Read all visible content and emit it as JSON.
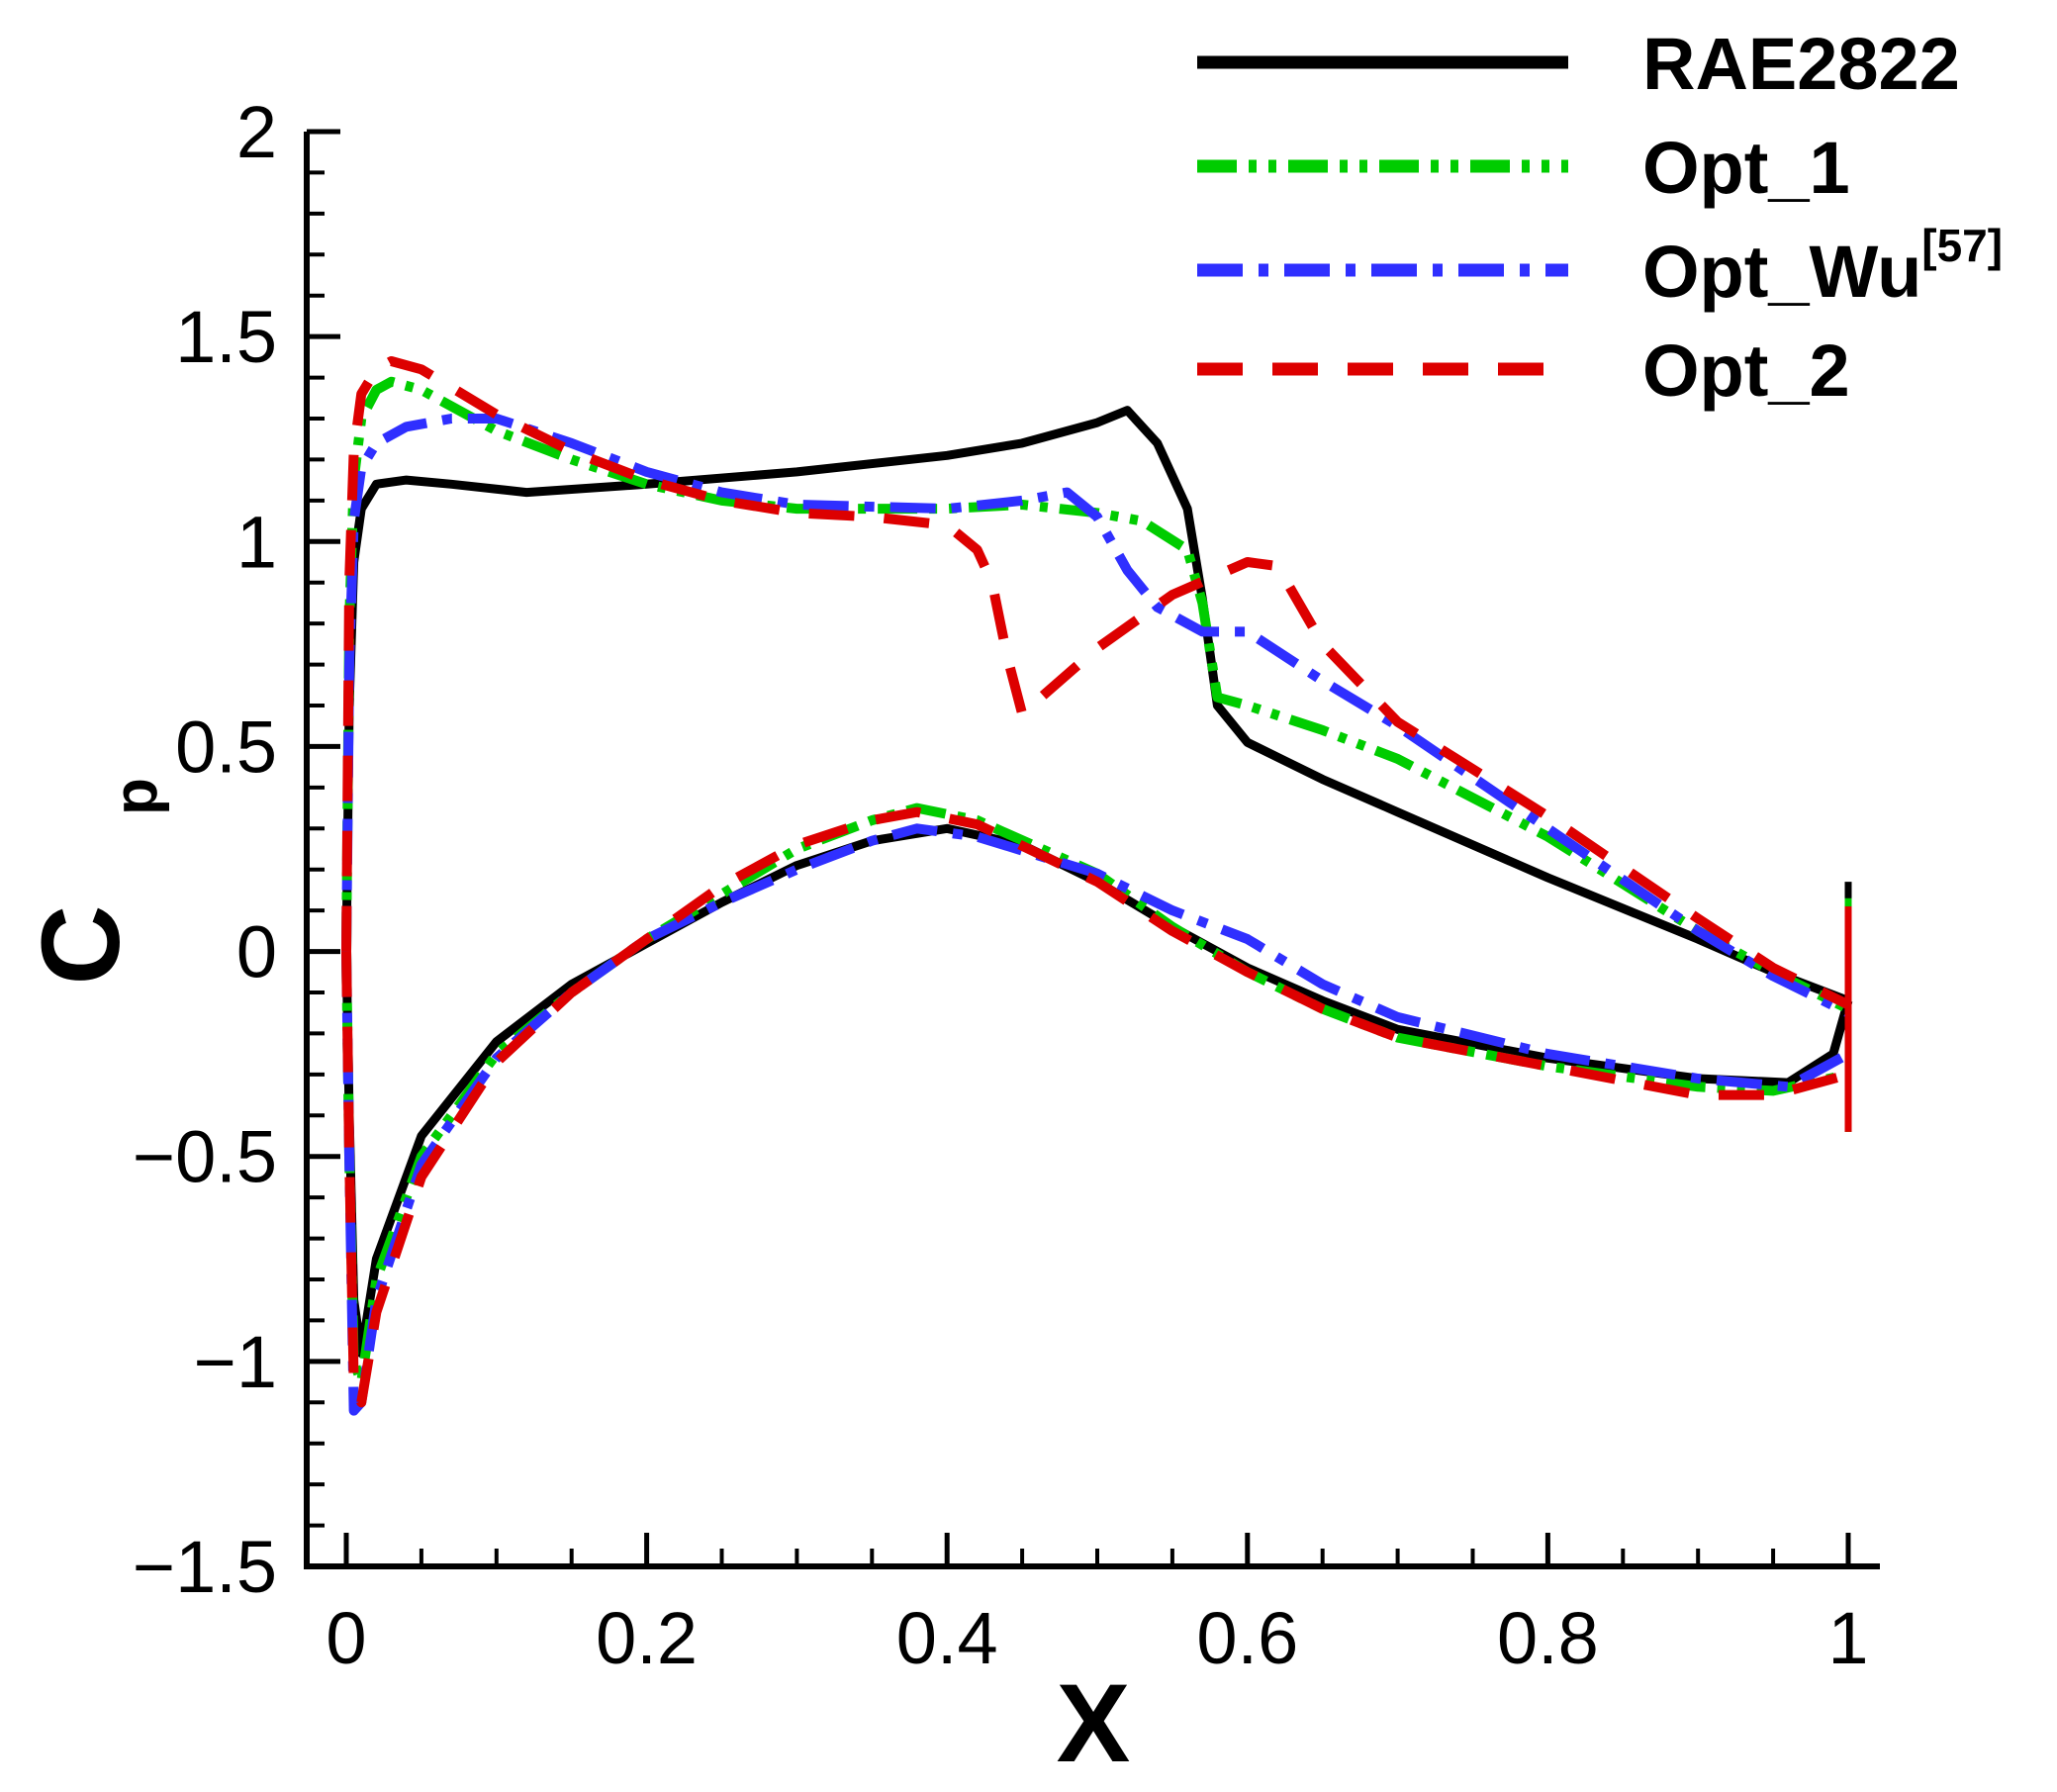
{
  "chart_data": {
    "type": "line",
    "title": "",
    "xlabel": "X",
    "ylabel": "C",
    "ylabel_subscript": "p",
    "xlim": [
      0,
      1
    ],
    "ylim": [
      -1.5,
      2
    ],
    "x_ticks": [
      0,
      0.2,
      0.4,
      0.6,
      0.8,
      1
    ],
    "x_tick_labels": [
      "0",
      "0.2",
      "0.4",
      "0.6",
      "0.8",
      "1"
    ],
    "y_ticks": [
      -1.5,
      -1,
      -0.5,
      0,
      0.5,
      1,
      1.5,
      2
    ],
    "y_tick_labels": [
      "−1.5",
      "−1",
      "−0.5",
      "0",
      "0.5",
      "1",
      "1.5",
      "2"
    ],
    "grid": false,
    "legend_position": "top-right",
    "series": [
      {
        "name": "RAE2822",
        "name_superscript": "",
        "color": "#000000",
        "dash": "solid",
        "upper": [
          [
            0,
            0
          ],
          [
            0.002,
            0.6
          ],
          [
            0.005,
            0.95
          ],
          [
            0.01,
            1.08
          ],
          [
            0.02,
            1.14
          ],
          [
            0.04,
            1.15
          ],
          [
            0.07,
            1.14
          ],
          [
            0.12,
            1.12
          ],
          [
            0.2,
            1.14
          ],
          [
            0.3,
            1.17
          ],
          [
            0.4,
            1.21
          ],
          [
            0.45,
            1.24
          ],
          [
            0.5,
            1.29
          ],
          [
            0.52,
            1.32
          ],
          [
            0.54,
            1.24
          ],
          [
            0.56,
            1.08
          ],
          [
            0.57,
            0.86
          ],
          [
            0.58,
            0.6
          ],
          [
            0.6,
            0.51
          ],
          [
            0.65,
            0.42
          ],
          [
            0.7,
            0.34
          ],
          [
            0.8,
            0.18
          ],
          [
            0.9,
            0.03
          ],
          [
            0.95,
            -0.05
          ],
          [
            1.0,
            -0.12
          ]
        ],
        "lower": [
          [
            0,
            0
          ],
          [
            0.002,
            -0.4
          ],
          [
            0.005,
            -0.85
          ],
          [
            0.01,
            -0.98
          ],
          [
            0.02,
            -0.75
          ],
          [
            0.05,
            -0.45
          ],
          [
            0.1,
            -0.22
          ],
          [
            0.15,
            -0.08
          ],
          [
            0.2,
            0.02
          ],
          [
            0.25,
            0.12
          ],
          [
            0.3,
            0.21
          ],
          [
            0.35,
            0.27
          ],
          [
            0.4,
            0.3
          ],
          [
            0.45,
            0.26
          ],
          [
            0.5,
            0.17
          ],
          [
            0.55,
            0.06
          ],
          [
            0.6,
            -0.04
          ],
          [
            0.65,
            -0.12
          ],
          [
            0.7,
            -0.19
          ],
          [
            0.8,
            -0.26
          ],
          [
            0.9,
            -0.31
          ],
          [
            0.96,
            -0.32
          ],
          [
            0.99,
            -0.25
          ],
          [
            1.0,
            -0.12
          ]
        ],
        "te_spike": [
          0.17,
          -0.12
        ]
      },
      {
        "name": "Opt_1",
        "name_superscript": "",
        "color": "#00cc00",
        "dash": "dash-dot-dot",
        "upper": [
          [
            0,
            0
          ],
          [
            0.002,
            0.8
          ],
          [
            0.005,
            1.15
          ],
          [
            0.01,
            1.3
          ],
          [
            0.02,
            1.37
          ],
          [
            0.03,
            1.39
          ],
          [
            0.05,
            1.37
          ],
          [
            0.1,
            1.27
          ],
          [
            0.15,
            1.2
          ],
          [
            0.2,
            1.14
          ],
          [
            0.25,
            1.1
          ],
          [
            0.3,
            1.08
          ],
          [
            0.4,
            1.08
          ],
          [
            0.45,
            1.09
          ],
          [
            0.5,
            1.07
          ],
          [
            0.53,
            1.05
          ],
          [
            0.56,
            0.98
          ],
          [
            0.57,
            0.85
          ],
          [
            0.58,
            0.62
          ],
          [
            0.6,
            0.6
          ],
          [
            0.65,
            0.54
          ],
          [
            0.7,
            0.47
          ],
          [
            0.8,
            0.28
          ],
          [
            0.9,
            0.05
          ],
          [
            0.95,
            -0.05
          ],
          [
            1.0,
            -0.14
          ]
        ],
        "lower": [
          [
            0,
            0
          ],
          [
            0.002,
            -0.5
          ],
          [
            0.005,
            -1.0
          ],
          [
            0.01,
            -1.05
          ],
          [
            0.02,
            -0.8
          ],
          [
            0.05,
            -0.5
          ],
          [
            0.1,
            -0.25
          ],
          [
            0.15,
            -0.1
          ],
          [
            0.2,
            0.03
          ],
          [
            0.25,
            0.14
          ],
          [
            0.3,
            0.25
          ],
          [
            0.35,
            0.32
          ],
          [
            0.38,
            0.35
          ],
          [
            0.42,
            0.32
          ],
          [
            0.5,
            0.19
          ],
          [
            0.55,
            0.06
          ],
          [
            0.6,
            -0.05
          ],
          [
            0.65,
            -0.14
          ],
          [
            0.7,
            -0.21
          ],
          [
            0.8,
            -0.28
          ],
          [
            0.9,
            -0.33
          ],
          [
            0.95,
            -0.34
          ],
          [
            1.0,
            -0.3
          ]
        ],
        "te_spike": [
          0.13,
          -0.44
        ]
      },
      {
        "name": "Opt_Wu",
        "name_superscript": "[57]",
        "color": "#2f2fff",
        "dash": "dash-dot",
        "upper": [
          [
            0,
            0
          ],
          [
            0.002,
            0.7
          ],
          [
            0.005,
            1.05
          ],
          [
            0.01,
            1.18
          ],
          [
            0.02,
            1.24
          ],
          [
            0.04,
            1.28
          ],
          [
            0.07,
            1.3
          ],
          [
            0.1,
            1.3
          ],
          [
            0.15,
            1.24
          ],
          [
            0.2,
            1.17
          ],
          [
            0.25,
            1.12
          ],
          [
            0.3,
            1.09
          ],
          [
            0.4,
            1.08
          ],
          [
            0.45,
            1.1
          ],
          [
            0.48,
            1.12
          ],
          [
            0.5,
            1.06
          ],
          [
            0.52,
            0.93
          ],
          [
            0.54,
            0.84
          ],
          [
            0.57,
            0.78
          ],
          [
            0.6,
            0.78
          ],
          [
            0.65,
            0.66
          ],
          [
            0.7,
            0.55
          ],
          [
            0.8,
            0.3
          ],
          [
            0.9,
            0.05
          ],
          [
            0.95,
            -0.06
          ],
          [
            1.0,
            -0.15
          ]
        ],
        "lower": [
          [
            0,
            0
          ],
          [
            0.002,
            -0.5
          ],
          [
            0.005,
            -1.12
          ],
          [
            0.01,
            -1.1
          ],
          [
            0.02,
            -0.85
          ],
          [
            0.05,
            -0.52
          ],
          [
            0.1,
            -0.26
          ],
          [
            0.15,
            -0.1
          ],
          [
            0.2,
            0.03
          ],
          [
            0.25,
            0.12
          ],
          [
            0.3,
            0.2
          ],
          [
            0.35,
            0.27
          ],
          [
            0.38,
            0.3
          ],
          [
            0.42,
            0.28
          ],
          [
            0.5,
            0.19
          ],
          [
            0.55,
            0.1
          ],
          [
            0.6,
            0.03
          ],
          [
            0.65,
            -0.08
          ],
          [
            0.7,
            -0.16
          ],
          [
            0.8,
            -0.25
          ],
          [
            0.9,
            -0.31
          ],
          [
            0.96,
            -0.33
          ],
          [
            1.0,
            -0.25
          ]
        ],
        "te_spike": [
          0.11,
          -0.36
        ]
      },
      {
        "name": "Opt_2",
        "name_superscript": "",
        "color": "#dd0000",
        "dash": "dash",
        "upper": [
          [
            0,
            0
          ],
          [
            0.002,
            0.9
          ],
          [
            0.005,
            1.22
          ],
          [
            0.01,
            1.36
          ],
          [
            0.02,
            1.42
          ],
          [
            0.03,
            1.44
          ],
          [
            0.05,
            1.42
          ],
          [
            0.1,
            1.31
          ],
          [
            0.15,
            1.22
          ],
          [
            0.2,
            1.15
          ],
          [
            0.25,
            1.1
          ],
          [
            0.3,
            1.07
          ],
          [
            0.35,
            1.06
          ],
          [
            0.4,
            1.04
          ],
          [
            0.42,
            0.98
          ],
          [
            0.43,
            0.9
          ],
          [
            0.44,
            0.72
          ],
          [
            0.45,
            0.58
          ],
          [
            0.5,
            0.74
          ],
          [
            0.55,
            0.87
          ],
          [
            0.6,
            0.95
          ],
          [
            0.62,
            0.94
          ],
          [
            0.65,
            0.75
          ],
          [
            0.7,
            0.56
          ],
          [
            0.8,
            0.33
          ],
          [
            0.9,
            0.08
          ],
          [
            0.95,
            -0.04
          ],
          [
            1.0,
            -0.13
          ]
        ],
        "lower": [
          [
            0,
            0
          ],
          [
            0.002,
            -0.5
          ],
          [
            0.005,
            -1.05
          ],
          [
            0.01,
            -1.1
          ],
          [
            0.02,
            -0.88
          ],
          [
            0.05,
            -0.55
          ],
          [
            0.1,
            -0.27
          ],
          [
            0.15,
            -0.1
          ],
          [
            0.2,
            0.03
          ],
          [
            0.25,
            0.16
          ],
          [
            0.3,
            0.26
          ],
          [
            0.35,
            0.32
          ],
          [
            0.38,
            0.34
          ],
          [
            0.42,
            0.31
          ],
          [
            0.5,
            0.17
          ],
          [
            0.55,
            0.05
          ],
          [
            0.6,
            -0.05
          ],
          [
            0.65,
            -0.14
          ],
          [
            0.7,
            -0.21
          ],
          [
            0.8,
            -0.28
          ],
          [
            0.9,
            -0.35
          ],
          [
            0.95,
            -0.35
          ],
          [
            1.0,
            -0.3
          ]
        ],
        "te_spike": [
          0.11,
          -0.44
        ]
      }
    ]
  }
}
